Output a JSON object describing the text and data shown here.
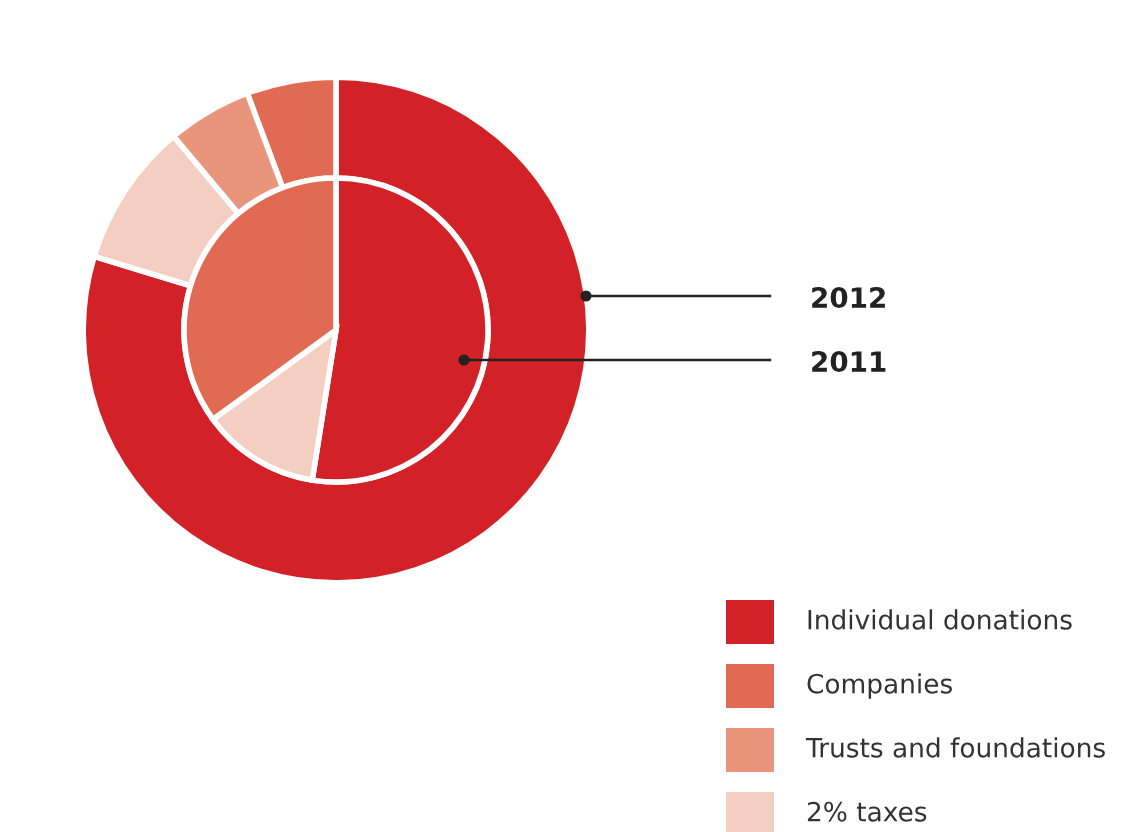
{
  "chart_data": {
    "type": "donut",
    "categories": [
      "Individual donations",
      "Companies",
      "Trusts and foundations",
      "2% taxes"
    ],
    "colors": [
      "#d32128",
      "#e06b52",
      "#e8957b",
      "#f4cfc1"
    ],
    "series": [
      {
        "name": "2012",
        "values": [
          79.7,
          5.7,
          5.4,
          9.2
        ]
      },
      {
        "name": "2011",
        "values": [
          52.5,
          35,
          0,
          12.5
        ]
      }
    ],
    "legend": "bottom right"
  }
}
